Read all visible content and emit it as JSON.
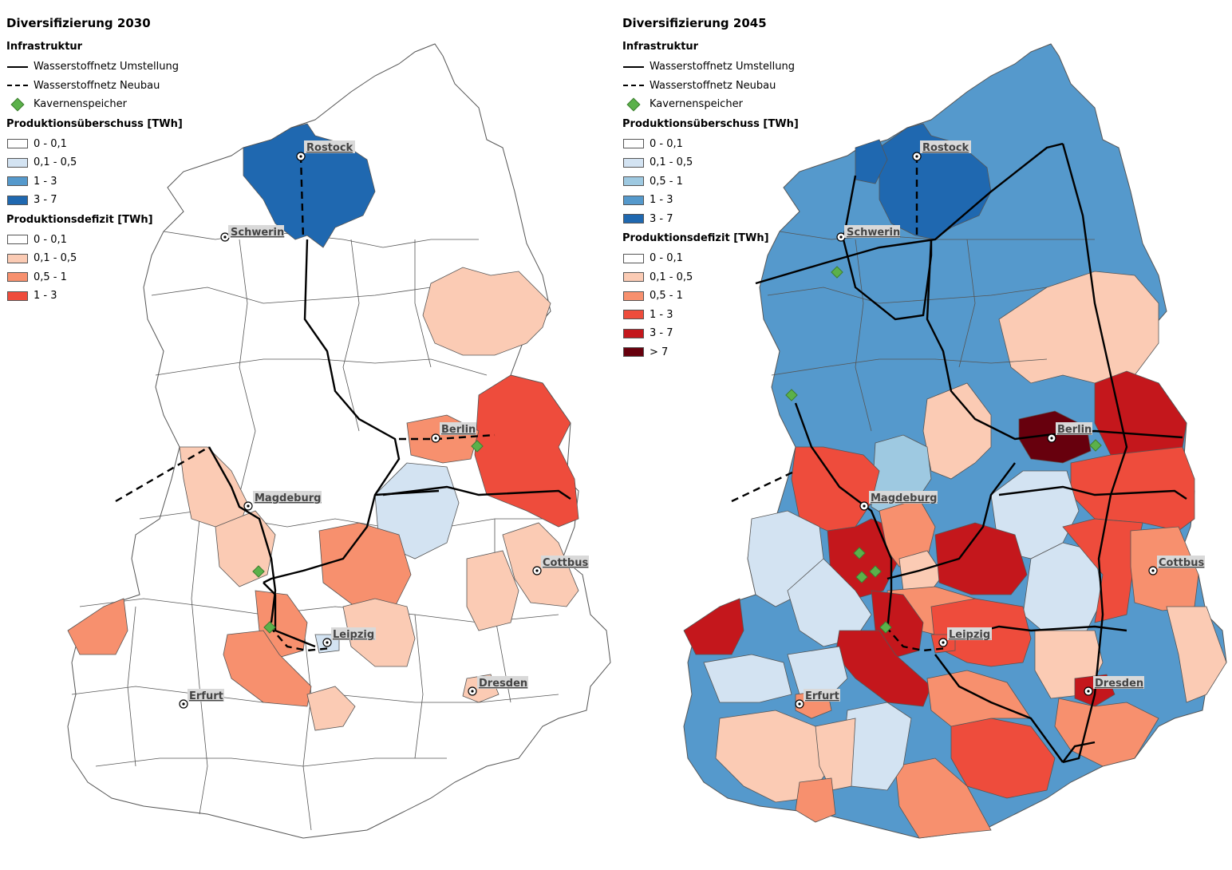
{
  "colors": {
    "surplus": [
      "#ffffff",
      "#d3e3f2",
      "#9ec9e1",
      "#5599cc",
      "#1f68b0"
    ],
    "deficit": [
      "#ffffff",
      "#fbcbb4",
      "#f7906e",
      "#ee4c3c",
      "#c4171c",
      "#67000d"
    ],
    "storage": "#5bb14a"
  },
  "panels": [
    {
      "title": "Diversifizierung 2030",
      "legend": {
        "infra_heading": "Infrastruktur",
        "infra": [
          "Wasserstoffnetz Umstellung",
          "Wasserstoffnetz Neubau",
          "Kavernenspeicher"
        ],
        "surplus_heading": "Produktionsüberschuss [TWh]",
        "surplus": [
          "0 - 0,1",
          "0,1 - 0,5",
          "1 - 3",
          "3 - 7"
        ],
        "deficit_heading": "Produktionsdefizit [TWh]",
        "deficit": [
          "0 - 0,1",
          "0,1 - 0,5",
          "0,5 - 1",
          "1 - 3"
        ]
      },
      "cities": [
        "Rostock",
        "Schwerin",
        "Berlin",
        "Magdeburg",
        "Cottbus",
        "Leipzig",
        "Dresden",
        "Erfurt"
      ]
    },
    {
      "title": "Diversifizierung 2045",
      "legend": {
        "infra_heading": "Infrastruktur",
        "infra": [
          "Wasserstoffnetz Umstellung",
          "Wasserstoffnetz Neubau",
          "Kavernenspeicher"
        ],
        "surplus_heading": "Produktionsüberschuss [TWh]",
        "surplus": [
          "0 - 0,1",
          "0,1 - 0,5",
          "0,5 - 1",
          "1 - 3",
          "3 - 7"
        ],
        "deficit_heading": "Produktionsdefizit [TWh]",
        "deficit": [
          "0 - 0,1",
          "0,1 - 0,5",
          "0,5 - 1",
          "1 - 3",
          "3 - 7",
          "> 7"
        ]
      },
      "cities": [
        "Rostock",
        "Schwerin",
        "Berlin",
        "Magdeburg",
        "Cottbus",
        "Leipzig",
        "Dresden",
        "Erfurt"
      ]
    }
  ]
}
